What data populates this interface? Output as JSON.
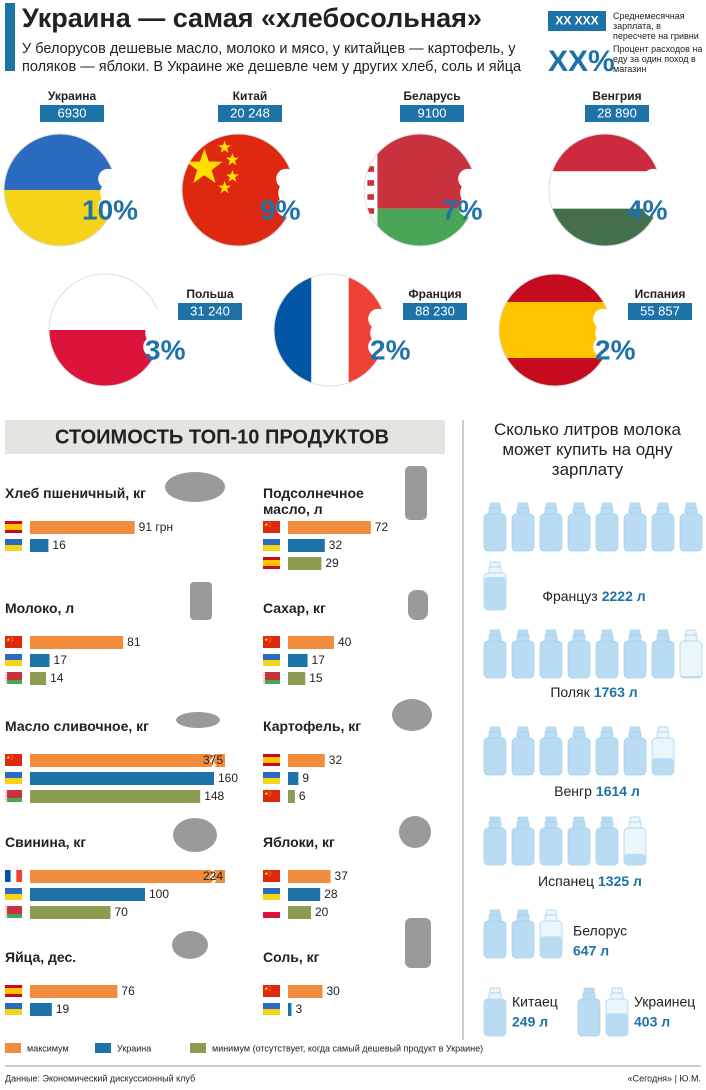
{
  "header": {
    "title": "Украина — самая «хлебосольная»",
    "subtitle": "У белорусов дешевые масло, молоко и мясо, у китайцев — картофель, у поляков — яблоки. В Украине же дешевле чем у других хлеб, соль и яйца"
  },
  "key": [
    {
      "sample": "ХХ ХХХ",
      "text": "Среднемесячная зарплата, в пересчете на гривни"
    },
    {
      "sample": "ХХ%",
      "text": "Процент расходов на еду за один поход в магазин"
    }
  ],
  "countries": [
    {
      "name": "Украина",
      "salary": "6930",
      "share": "10%",
      "flag": "ua"
    },
    {
      "name": "Китай",
      "salary": "20 248",
      "share": "9%",
      "flag": "cn"
    },
    {
      "name": "Беларусь",
      "salary": "9100",
      "share": "7%",
      "flag": "by"
    },
    {
      "name": "Венгрия",
      "salary": "28 890",
      "share": "4%",
      "flag": "hu"
    },
    {
      "name": "Польша",
      "salary": "31 240",
      "share": "3%",
      "flag": "pl"
    },
    {
      "name": "Франция",
      "salary": "88 230",
      "share": "2%",
      "flag": "fr"
    },
    {
      "name": "Испания",
      "salary": "55 857",
      "share": "2%",
      "flag": "es"
    }
  ],
  "products_title": "СТОИМОСТЬ ТОП-10 ПРОДУКТОВ",
  "products": [
    {
      "name": "Хлеб пшеничный, кг",
      "rows": [
        {
          "flag": "es",
          "color": "#f08c3c",
          "value": 91,
          "value_label": "91 грн"
        },
        {
          "flag": "ua",
          "color": "#1d72a8",
          "value": 16
        }
      ]
    },
    {
      "name": "Молоко, л",
      "rows": [
        {
          "flag": "cn",
          "color": "#f08c3c",
          "value": 81
        },
        {
          "flag": "ua",
          "color": "#1d72a8",
          "value": 17
        },
        {
          "flag": "by",
          "color": "#8c9c50",
          "value": 14
        }
      ]
    },
    {
      "name": "Масло сливочное, кг",
      "rows": [
        {
          "flag": "cn",
          "color": "#f08c3c",
          "value": 375
        },
        {
          "flag": "ua",
          "color": "#1d72a8",
          "value": 160
        },
        {
          "flag": "by",
          "color": "#8c9c50",
          "value": 148
        }
      ]
    },
    {
      "name": "Свинина, кг",
      "rows": [
        {
          "flag": "fr",
          "color": "#f08c3c",
          "value": 224
        },
        {
          "flag": "ua",
          "color": "#1d72a8",
          "value": 100
        },
        {
          "flag": "by",
          "color": "#8c9c50",
          "value": 70
        }
      ]
    },
    {
      "name": "Яйца, дес.",
      "rows": [
        {
          "flag": "es",
          "color": "#f08c3c",
          "value": 76
        },
        {
          "flag": "ua",
          "color": "#1d72a8",
          "value": 19
        }
      ]
    },
    {
      "name": "Подсолнечное масло, л",
      "rows": [
        {
          "flag": "cn",
          "color": "#f08c3c",
          "value": 72
        },
        {
          "flag": "ua",
          "color": "#1d72a8",
          "value": 32
        },
        {
          "flag": "es",
          "color": "#8c9c50",
          "value": 29
        }
      ]
    },
    {
      "name": "Сахар, кг",
      "rows": [
        {
          "flag": "cn",
          "color": "#f08c3c",
          "value": 40
        },
        {
          "flag": "ua",
          "color": "#1d72a8",
          "value": 17
        },
        {
          "flag": "by",
          "color": "#8c9c50",
          "value": 15
        }
      ]
    },
    {
      "name": "Картофель, кг",
      "rows": [
        {
          "flag": "es",
          "color": "#f08c3c",
          "value": 32
        },
        {
          "flag": "ua",
          "color": "#1d72a8",
          "value": 9
        },
        {
          "flag": "cn",
          "color": "#8c9c50",
          "value": 6
        }
      ]
    },
    {
      "name": "Яблоки, кг",
      "rows": [
        {
          "flag": "cn",
          "color": "#f08c3c",
          "value": 37
        },
        {
          "flag": "ua",
          "color": "#1d72a8",
          "value": 28
        },
        {
          "flag": "pl",
          "color": "#8c9c50",
          "value": 20
        }
      ]
    },
    {
      "name": "Соль, кг",
      "rows": [
        {
          "flag": "cn",
          "color": "#f08c3c",
          "value": 30
        },
        {
          "flag": "ua",
          "color": "#1d72a8",
          "value": 3
        }
      ]
    }
  ],
  "legend": [
    {
      "label": "максимум",
      "color": "#f08c3c"
    },
    {
      "label": "Украина",
      "color": "#1d72a8"
    },
    {
      "label": "минимум (отсутствует, когда самый дешевый продукт в Украине)",
      "color": "#8c9c50"
    }
  ],
  "milk": {
    "title": "Сколько литров молока может купить на одну зарплату",
    "items": [
      {
        "name": "Француз",
        "liters": 2222,
        "value_label": "2222 л"
      },
      {
        "name": "Поляк",
        "liters": 1763,
        "value_label": "1763 л"
      },
      {
        "name": "Венгр",
        "liters": 1614,
        "value_label": "1614 л"
      },
      {
        "name": "Испанец",
        "liters": 1325,
        "value_label": "1325 л"
      },
      {
        "name": "Белорус",
        "liters": 647,
        "value_label": "647 л"
      },
      {
        "name": "Китаец",
        "liters": 249,
        "value_label": "249 л"
      },
      {
        "name": "Украинец",
        "liters": 403,
        "value_label": "403 л"
      }
    ]
  },
  "footer": {
    "source": "Данные: Экономический дискуссионный клуб",
    "credit": "«Сегодня» | Ю.М."
  }
}
